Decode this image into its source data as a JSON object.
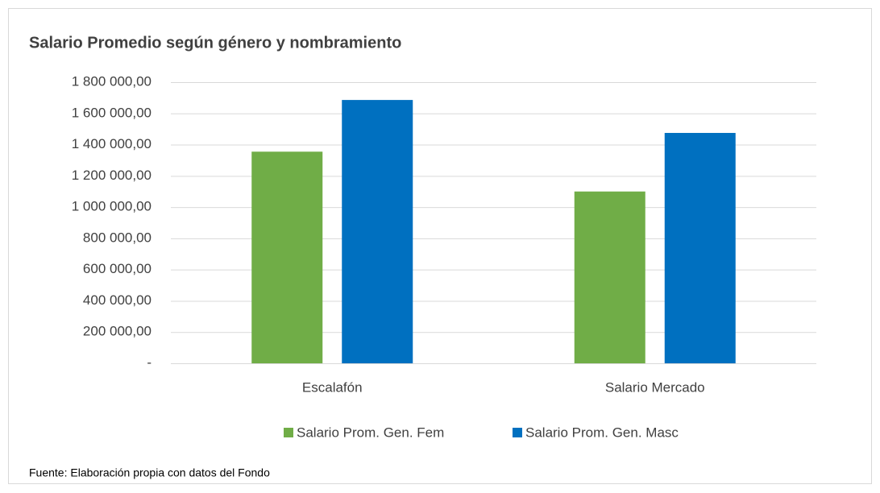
{
  "chart_data": {
    "type": "bar",
    "title": "Salario Promedio según género y nombramiento",
    "categories": [
      "Escalafón",
      "Salario Mercado"
    ],
    "series": [
      {
        "name": "Salario Prom. Gen. Fem",
        "color": "#70ad47",
        "values": [
          1355000,
          1100000
        ]
      },
      {
        "name": "Salario Prom. Gen. Masc",
        "color": "#0070c0",
        "values": [
          1686000,
          1475000
        ]
      }
    ],
    "ylim": [
      0,
      1800000
    ],
    "yticks": [
      {
        "value": 0,
        "label": "-"
      },
      {
        "value": 200000,
        "label": "200 000,00"
      },
      {
        "value": 400000,
        "label": "400 000,00"
      },
      {
        "value": 600000,
        "label": "600 000,00"
      },
      {
        "value": 800000,
        "label": "800 000,00"
      },
      {
        "value": 1000000,
        "label": "1 000 000,00"
      },
      {
        "value": 1200000,
        "label": "1 200 000,00"
      },
      {
        "value": 1400000,
        "label": "1 400 000,00"
      },
      {
        "value": 1600000,
        "label": "1 600 000,00"
      },
      {
        "value": 1800000,
        "label": "1 800 000,00"
      }
    ],
    "grid": true,
    "legend": "bottom",
    "note": "Fuente: Elaboración propia con datos del Fondo"
  }
}
